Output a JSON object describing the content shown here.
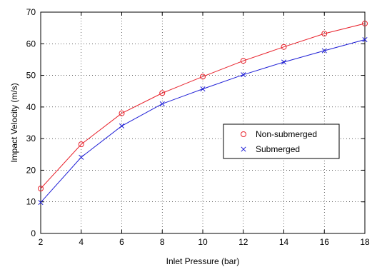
{
  "chart_data": {
    "type": "line",
    "title": "",
    "xlabel": "Inlet Pressure (bar)",
    "ylabel": "Impact Velocity (m/s)",
    "xlim": [
      2,
      18
    ],
    "ylim": [
      0,
      70
    ],
    "xticks": [
      2,
      4,
      6,
      8,
      10,
      12,
      14,
      16,
      18
    ],
    "yticks": [
      0,
      10,
      20,
      30,
      40,
      50,
      60,
      70
    ],
    "grid": true,
    "legend_position": "right",
    "x": [
      2,
      4,
      6,
      8,
      10,
      12,
      14,
      16,
      18
    ],
    "series": [
      {
        "name": "Non-submerged",
        "values": [
          14.2,
          28.2,
          38.0,
          44.4,
          49.6,
          54.6,
          59.0,
          63.2,
          66.4
        ],
        "color": "#e8202a",
        "marker": "circle"
      },
      {
        "name": "Submerged",
        "values": [
          9.8,
          24.1,
          34.0,
          41.0,
          45.7,
          50.2,
          54.2,
          57.8,
          61.3
        ],
        "color": "#1f1fd6",
        "marker": "x"
      }
    ]
  }
}
